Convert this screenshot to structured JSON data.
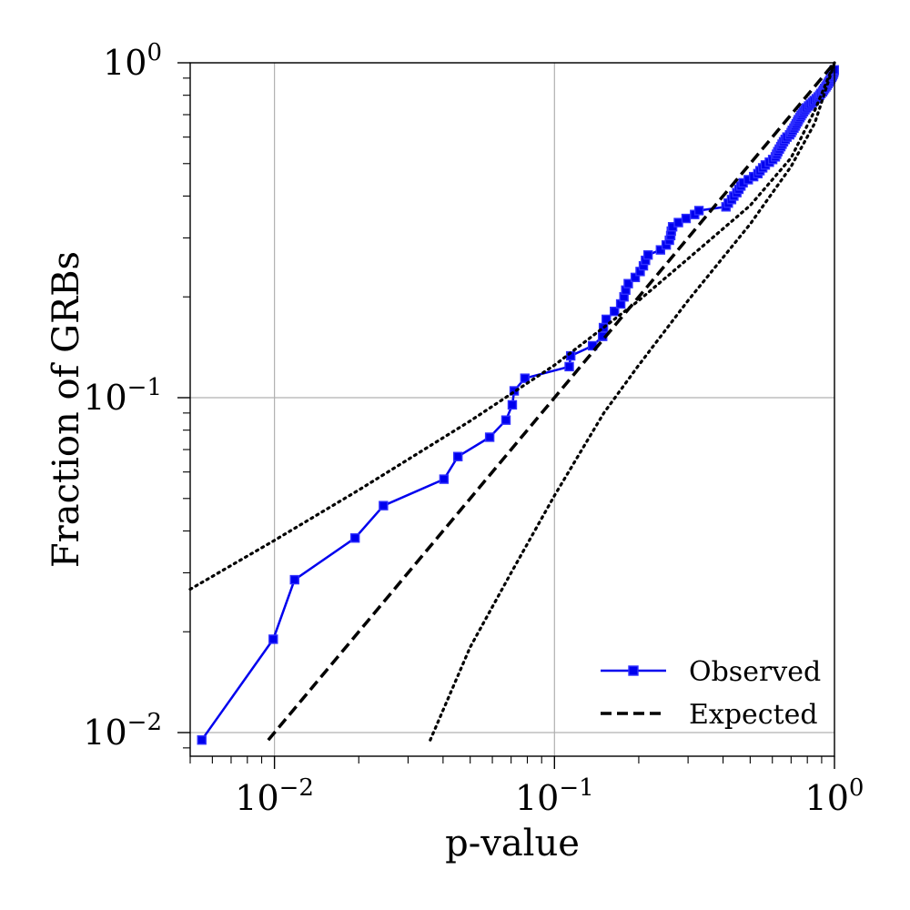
{
  "chart_data": {
    "type": "line",
    "xlabel": "p-value",
    "ylabel": "Fraction of GRBs",
    "xscale": "log",
    "yscale": "log",
    "xlim": [
      0.005,
      1.0
    ],
    "ylim": [
      0.0085,
      1.0
    ],
    "grid": true,
    "legend_position": "bottom-right",
    "x_ticks": [
      {
        "value": 0.01,
        "base": "10",
        "exp": "−2"
      },
      {
        "value": 0.1,
        "base": "10",
        "exp": "−1"
      },
      {
        "value": 1,
        "base": "10",
        "exp": "0"
      }
    ],
    "y_ticks": [
      {
        "value": 0.01,
        "base": "10",
        "exp": "−2"
      },
      {
        "value": 0.1,
        "base": "10",
        "exp": "−1"
      },
      {
        "value": 1,
        "base": "10",
        "exp": "0"
      }
    ],
    "series": [
      {
        "name": "Observed",
        "color": "#0000ee",
        "style": "solid",
        "marker": "square",
        "points": [
          [
            0.0055,
            0.0095
          ],
          [
            0.0099,
            0.019
          ],
          [
            0.0118,
            0.0286
          ],
          [
            0.0194,
            0.0381
          ],
          [
            0.0245,
            0.0476
          ],
          [
            0.0403,
            0.0571
          ],
          [
            0.0452,
            0.0667
          ],
          [
            0.0587,
            0.0762
          ],
          [
            0.0671,
            0.0857
          ],
          [
            0.0707,
            0.0952
          ],
          [
            0.0718,
            0.1048
          ],
          [
            0.0784,
            0.1143
          ],
          [
            0.1129,
            0.1238
          ],
          [
            0.1143,
            0.1333
          ],
          [
            0.1368,
            0.1429
          ],
          [
            0.1486,
            0.1524
          ],
          [
            0.1496,
            0.1619
          ],
          [
            0.1531,
            0.1714
          ],
          [
            0.1638,
            0.181
          ],
          [
            0.1724,
            0.1905
          ],
          [
            0.1771,
            0.2
          ],
          [
            0.1797,
            0.2095
          ],
          [
            0.1835,
            0.219
          ],
          [
            0.1943,
            0.2286
          ],
          [
            0.2023,
            0.2381
          ],
          [
            0.2078,
            0.2476
          ],
          [
            0.2114,
            0.2571
          ],
          [
            0.2159,
            0.2667
          ],
          [
            0.2391,
            0.2762
          ],
          [
            0.2507,
            0.2857
          ],
          [
            0.2573,
            0.2952
          ],
          [
            0.2601,
            0.3048
          ],
          [
            0.2614,
            0.3143
          ],
          [
            0.2642,
            0.3238
          ],
          [
            0.2771,
            0.3333
          ],
          [
            0.2952,
            0.3429
          ],
          [
            0.3166,
            0.3524
          ],
          [
            0.3281,
            0.3619
          ],
          [
            0.4097,
            0.3714
          ],
          [
            0.4177,
            0.381
          ],
          [
            0.4289,
            0.3905
          ],
          [
            0.4371,
            0.4
          ],
          [
            0.4479,
            0.4095
          ],
          [
            0.4556,
            0.419
          ],
          [
            0.4633,
            0.4286
          ],
          [
            0.4717,
            0.4381
          ],
          [
            0.4922,
            0.4476
          ],
          [
            0.5144,
            0.4571
          ],
          [
            0.5326,
            0.4667
          ],
          [
            0.5419,
            0.4762
          ],
          [
            0.5542,
            0.4857
          ],
          [
            0.5662,
            0.4952
          ],
          [
            0.5854,
            0.5048
          ],
          [
            0.6015,
            0.5143
          ],
          [
            0.6149,
            0.5238
          ],
          [
            0.6214,
            0.5333
          ],
          [
            0.6276,
            0.5429
          ],
          [
            0.6354,
            0.5524
          ],
          [
            0.6433,
            0.5619
          ],
          [
            0.6501,
            0.5714
          ],
          [
            0.6577,
            0.581
          ],
          [
            0.6667,
            0.5905
          ],
          [
            0.6764,
            0.6
          ],
          [
            0.6915,
            0.6095
          ],
          [
            0.7006,
            0.619
          ],
          [
            0.7071,
            0.6286
          ],
          [
            0.7163,
            0.6381
          ],
          [
            0.7235,
            0.6476
          ],
          [
            0.7301,
            0.6571
          ],
          [
            0.7378,
            0.6667
          ],
          [
            0.7436,
            0.6762
          ],
          [
            0.7523,
            0.6857
          ],
          [
            0.7597,
            0.6952
          ],
          [
            0.7671,
            0.7048
          ],
          [
            0.7754,
            0.7143
          ],
          [
            0.7841,
            0.7238
          ],
          [
            0.7943,
            0.7333
          ],
          [
            0.8081,
            0.7429
          ],
          [
            0.8201,
            0.7524
          ],
          [
            0.8342,
            0.7619
          ],
          [
            0.8461,
            0.7714
          ],
          [
            0.8613,
            0.781
          ],
          [
            0.8742,
            0.7905
          ],
          [
            0.8859,
            0.8
          ],
          [
            0.8951,
            0.8095
          ],
          [
            0.9066,
            0.819
          ],
          [
            0.9141,
            0.8286
          ],
          [
            0.9224,
            0.8381
          ],
          [
            0.9319,
            0.8476
          ],
          [
            0.9398,
            0.8571
          ],
          [
            0.9477,
            0.8667
          ],
          [
            0.9552,
            0.8762
          ],
          [
            0.9624,
            0.8857
          ],
          [
            0.9701,
            0.8952
          ],
          [
            0.9772,
            0.9048
          ],
          [
            0.9834,
            0.9143
          ],
          [
            0.9887,
            0.9238
          ],
          [
            0.9931,
            0.9333
          ],
          [
            0.9962,
            0.9429
          ],
          [
            0.9982,
            0.9524
          ]
        ]
      },
      {
        "name": "Expected",
        "color": "#000000",
        "style": "dashed",
        "points": [
          [
            0.0095,
            0.0095
          ],
          [
            1.0,
            1.0
          ]
        ]
      },
      {
        "name": "",
        "color": "#000000",
        "style": "dotted",
        "points": [
          [
            0.005,
            0.0268
          ],
          [
            0.01,
            0.0375
          ],
          [
            0.02,
            0.053
          ],
          [
            0.05,
            0.0852
          ],
          [
            0.1,
            0.125
          ],
          [
            0.2,
            0.195
          ],
          [
            0.3,
            0.26
          ],
          [
            0.5,
            0.375
          ],
          [
            0.7,
            0.52
          ],
          [
            0.85,
            0.72
          ],
          [
            1.0,
            1.0
          ]
        ]
      },
      {
        "name": "",
        "color": "#000000",
        "style": "dotted",
        "points": [
          [
            0.036,
            0.0095
          ],
          [
            0.05,
            0.018
          ],
          [
            0.07,
            0.03
          ],
          [
            0.1,
            0.051
          ],
          [
            0.15,
            0.09
          ],
          [
            0.2,
            0.125
          ],
          [
            0.3,
            0.195
          ],
          [
            0.5,
            0.33
          ],
          [
            0.7,
            0.49
          ],
          [
            0.85,
            0.66
          ],
          [
            1.0,
            1.0
          ]
        ]
      }
    ]
  }
}
